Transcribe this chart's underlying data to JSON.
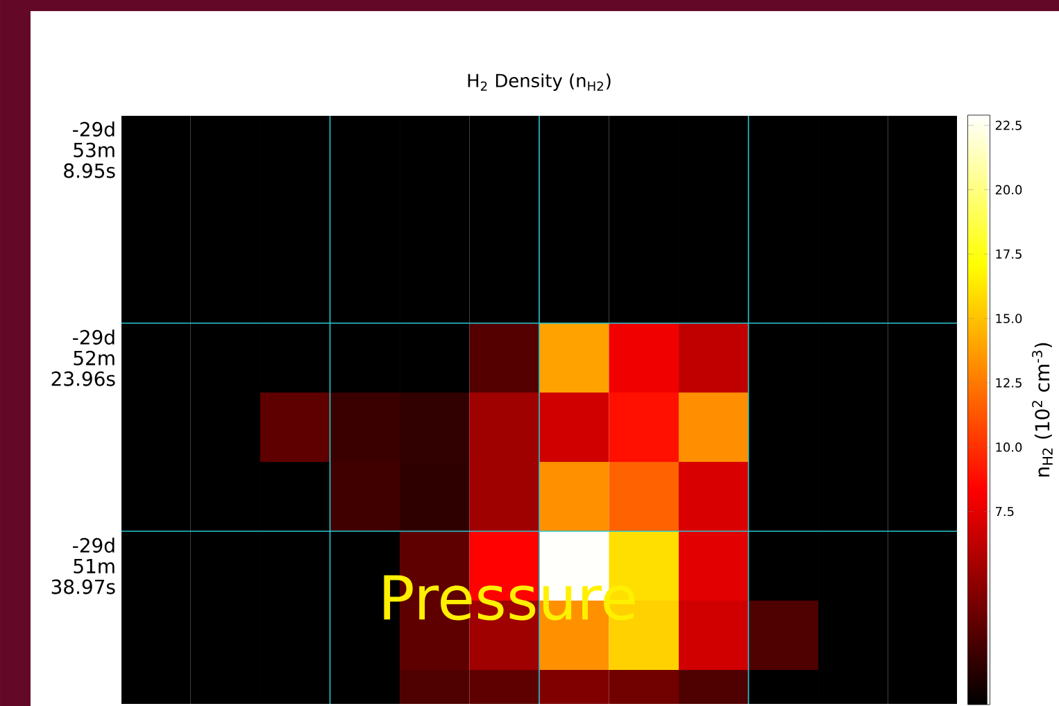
{
  "chart_data": {
    "type": "heatmap",
    "title": "H$_{2}$ Density (n$_{H2}$)",
    "clabel": "n$_{H2}$ (10$^{2}$ cm$^{-3}$)",
    "categories": [
      null,
      null,
      null,
      null,
      null,
      null,
      null,
      null,
      null,
      null,
      null,
      null
    ],
    "y_categories": [
      "-29d 53m 8.95s",
      null,
      null,
      "-29d 52m 23.96s",
      null,
      null,
      "-29d 51m 38.97s",
      null,
      null
    ],
    "cells": [
      [
        0,
        0,
        0,
        0,
        0,
        0,
        0,
        0,
        0,
        0,
        0,
        0
      ],
      [
        0,
        0,
        0,
        0,
        0,
        0,
        0,
        0,
        0,
        0,
        0,
        0
      ],
      [
        0,
        0,
        0,
        0,
        0,
        0,
        0,
        0,
        0,
        0,
        0,
        0
      ],
      [
        0,
        0,
        0,
        0,
        0,
        2.8,
        13.9,
        7.9,
        6.3,
        0,
        0,
        0
      ],
      [
        0,
        0,
        3.1,
        1.9,
        1.6,
        5.2,
        6.8,
        8.9,
        13.2,
        0,
        0,
        0
      ],
      [
        0,
        0,
        0,
        2.1,
        1.5,
        5.2,
        13.3,
        11.7,
        7.1,
        0,
        0,
        0
      ],
      [
        0,
        0,
        0,
        0,
        3.1,
        8.4,
        22.8,
        16.0,
        7.4,
        0,
        0,
        0
      ],
      [
        0,
        0,
        0,
        0,
        3.1,
        5.2,
        13.3,
        15.5,
        6.8,
        2.6,
        0,
        0
      ],
      [
        0,
        0,
        0,
        0,
        2.6,
        3.1,
        4.2,
        3.7,
        2.6,
        0,
        0,
        0
      ]
    ],
    "grid": true,
    "clim": [
      0,
      22.9
    ],
    "cticks": [
      7.5,
      {
        "value": 10,
        "label": "10.0"
      },
      12.5,
      {
        "value": 15,
        "label": "15.0"
      },
      17.5,
      {
        "value": 20,
        "label": "20.0"
      },
      22.5
    ],
    "annotations": [
      "Pressure"
    ]
  }
}
